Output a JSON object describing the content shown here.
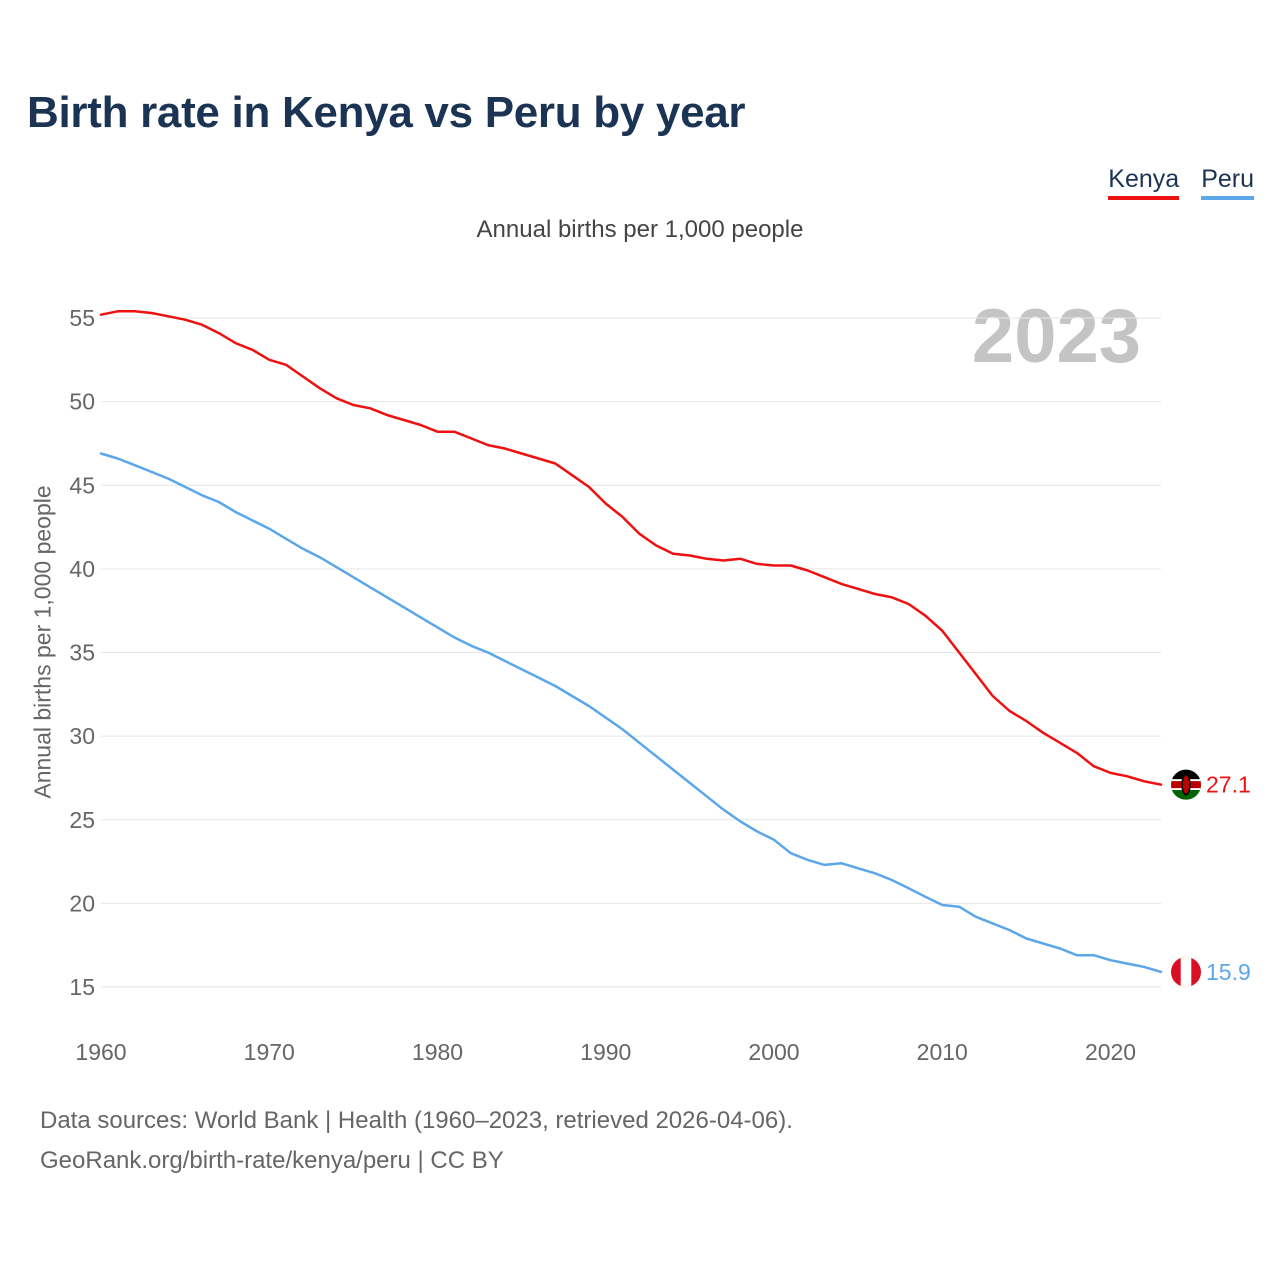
{
  "header": {
    "title": "Birth rate in Kenya vs Peru by year",
    "subtitle": "Annual births per 1,000 people"
  },
  "legend": {
    "items": [
      {
        "label": "Kenya",
        "color": "#ee1111"
      },
      {
        "label": "Peru",
        "color": "#5ba7ea"
      }
    ]
  },
  "footer": {
    "sources": "Data sources: World Bank | Health (1960–2023, retrieved 2026-04-06).",
    "credit": "GeoRank.org/birth-rate/kenya/peru | CC BY"
  },
  "chart_data": {
    "type": "line",
    "title": "Birth rate in Kenya vs Peru by year",
    "ylabel": "Annual births per 1,000 people",
    "xlabel": "",
    "watermark": "2023",
    "xlim": [
      1960,
      2023
    ],
    "ylim": [
      15,
      55
    ],
    "x_ticks": [
      1960,
      1970,
      1980,
      1990,
      2000,
      2010,
      2020
    ],
    "y_ticks": [
      15,
      20,
      25,
      30,
      35,
      40,
      45,
      50,
      55
    ],
    "grid": true,
    "x": [
      1960,
      1961,
      1962,
      1963,
      1964,
      1965,
      1966,
      1967,
      1968,
      1969,
      1970,
      1971,
      1972,
      1973,
      1974,
      1975,
      1976,
      1977,
      1978,
      1979,
      1980,
      1981,
      1982,
      1983,
      1984,
      1985,
      1986,
      1987,
      1988,
      1989,
      1990,
      1991,
      1992,
      1993,
      1994,
      1995,
      1996,
      1997,
      1998,
      1999,
      2000,
      2001,
      2002,
      2003,
      2004,
      2005,
      2006,
      2007,
      2008,
      2009,
      2010,
      2011,
      2012,
      2013,
      2014,
      2015,
      2016,
      2017,
      2018,
      2019,
      2020,
      2021,
      2022,
      2023
    ],
    "series": [
      {
        "name": "Kenya",
        "color": "#ee1111",
        "end_label": "27.1",
        "values": [
          55.2,
          55.4,
          55.4,
          55.3,
          55.1,
          54.9,
          54.6,
          54.1,
          53.5,
          53.1,
          52.5,
          52.2,
          51.5,
          50.8,
          50.2,
          49.8,
          49.6,
          49.2,
          48.9,
          48.6,
          48.2,
          48.2,
          47.8,
          47.4,
          47.2,
          46.9,
          46.6,
          46.3,
          45.6,
          44.9,
          43.9,
          43.1,
          42.1,
          41.4,
          40.9,
          40.8,
          40.6,
          40.5,
          40.6,
          40.3,
          40.2,
          40.2,
          39.9,
          39.5,
          39.1,
          38.8,
          38.5,
          38.3,
          37.9,
          37.2,
          36.3,
          35.0,
          33.7,
          32.4,
          31.5,
          30.9,
          30.2,
          29.6,
          29.0,
          28.2,
          27.8,
          27.6,
          27.3,
          27.1
        ]
      },
      {
        "name": "Peru",
        "color": "#5ba7ea",
        "end_label": "15.9",
        "values": [
          46.9,
          46.6,
          46.2,
          45.8,
          45.4,
          44.9,
          44.4,
          44.0,
          43.4,
          42.9,
          42.4,
          41.8,
          41.2,
          40.7,
          40.1,
          39.5,
          38.9,
          38.3,
          37.7,
          37.1,
          36.5,
          35.9,
          35.4,
          35.0,
          34.5,
          34.0,
          33.5,
          33.0,
          32.4,
          31.8,
          31.1,
          30.4,
          29.6,
          28.8,
          28.0,
          27.2,
          26.4,
          25.6,
          24.9,
          24.3,
          23.8,
          23.0,
          22.6,
          22.3,
          22.4,
          22.1,
          21.8,
          21.4,
          20.9,
          20.4,
          19.9,
          19.8,
          19.2,
          18.8,
          18.4,
          17.9,
          17.6,
          17.3,
          16.9,
          16.9,
          16.6,
          16.4,
          16.2,
          15.9
        ]
      }
    ]
  }
}
